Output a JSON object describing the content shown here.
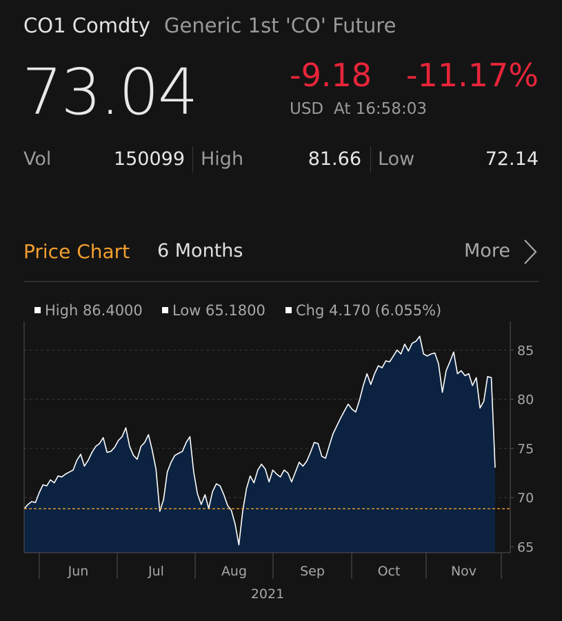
{
  "header": {
    "ticker": "CO1 Comdty",
    "description": "Generic 1st 'CO' Future",
    "last_price": "73.04",
    "net_change": "-9.18",
    "pct_change": "-11.17%",
    "currency": "USD",
    "time": "At 16:58:03",
    "change_color": "#e8253a"
  },
  "stats": {
    "vol_label": "Vol",
    "vol": "150099",
    "high_label": "High",
    "high": "81.66",
    "low_label": "Low",
    "low": "72.14"
  },
  "chart_section": {
    "title": "Price Chart",
    "period": "6 Months",
    "more_label": "More",
    "more_icon": "chevron-right-icon",
    "accent_color": "#f39f2e"
  },
  "chart_data": {
    "type": "area",
    "legend": {
      "high": "High 86.4000",
      "low": "Low 65.1800",
      "chg": "Chg 4.170 (6.055%)"
    },
    "legend_placement": "top-left",
    "months": [
      "Jun",
      "Jul",
      "Aug",
      "Sep",
      "Oct",
      "Nov"
    ],
    "year_label": "2021",
    "y_ticks": [
      65,
      70,
      75,
      80,
      85
    ],
    "ylim": [
      64.4,
      87.9
    ],
    "reference_value": 68.87,
    "grid": true,
    "fill_color": "#0b2340",
    "line_color": "#ffffff",
    "reference_color": "#f39f2e",
    "values": [
      68.87,
      69.3,
      69.6,
      69.5,
      70.5,
      71.3,
      71.2,
      71.8,
      71.5,
      72.2,
      72.1,
      72.4,
      72.6,
      72.8,
      73.8,
      74.4,
      73.2,
      73.8,
      74.6,
      75.2,
      75.5,
      76.1,
      74.6,
      74.7,
      75.1,
      75.8,
      76.2,
      77.1,
      75.2,
      74.3,
      73.9,
      75.2,
      75.6,
      76.4,
      74.8,
      72.9,
      68.6,
      69.8,
      72.6,
      73.6,
      74.3,
      74.5,
      74.7,
      75.6,
      76.2,
      72.6,
      70.4,
      69.3,
      70.3,
      68.9,
      70.6,
      71.4,
      71.2,
      70.3,
      69.2,
      68.7,
      67.3,
      65.2,
      68.6,
      70.9,
      72.2,
      71.5,
      72.8,
      73.4,
      72.9,
      71.6,
      72.8,
      72.4,
      72.1,
      72.8,
      72.5,
      71.6,
      72.6,
      73.6,
      73.2,
      73.7,
      74.6,
      75.6,
      75.5,
      74.2,
      74.0,
      75.3,
      76.5,
      77.3,
      78.1,
      78.8,
      79.5,
      79.0,
      78.7,
      79.9,
      81.4,
      82.6,
      81.5,
      82.6,
      83.4,
      83.2,
      83.9,
      83.8,
      84.4,
      85.0,
      84.6,
      85.6,
      84.9,
      85.7,
      85.9,
      86.4,
      84.6,
      84.4,
      84.6,
      84.7,
      83.6,
      80.7,
      82.9,
      83.8,
      84.8,
      82.6,
      82.9,
      82.4,
      82.6,
      81.4,
      82.2,
      79.1,
      79.8,
      82.3,
      82.2,
      73.04
    ]
  }
}
